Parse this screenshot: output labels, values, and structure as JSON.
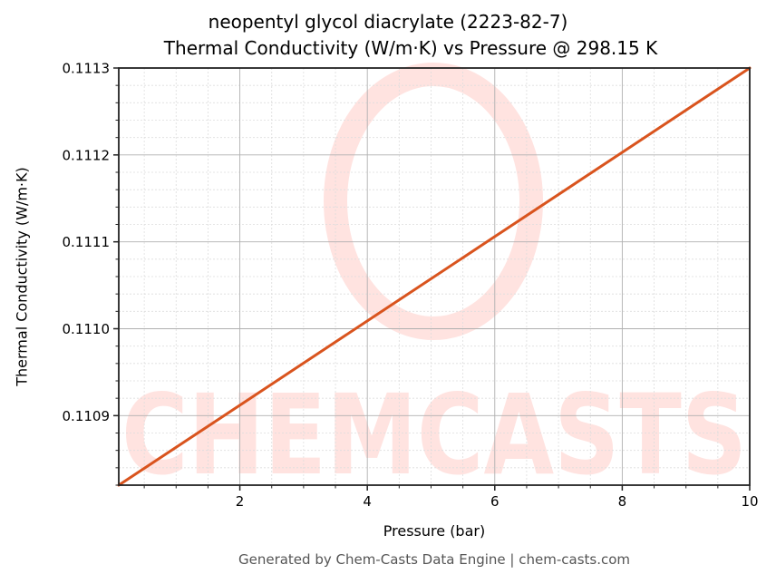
{
  "chart_data": {
    "type": "line",
    "title": "neopentyl glycol diacrylate (2223-82-7)",
    "subtitle": "Thermal Conductivity (W/m·K) vs Pressure @ 298.15 K",
    "xlabel": "Pressure (bar)",
    "ylabel": "Thermal Conductivity (W/m·K)",
    "xlim": [
      0.1,
      10
    ],
    "ylim": [
      0.11082,
      0.1113
    ],
    "x_ticks": [
      2,
      4,
      6,
      8,
      10
    ],
    "x_tick_labels": [
      "2",
      "4",
      "6",
      "8",
      "10"
    ],
    "y_ticks": [
      0.1109,
      0.111,
      0.1111,
      0.1112,
      0.1113
    ],
    "y_tick_labels": [
      "0.1109",
      "0.1110",
      "0.1111",
      "0.1112",
      "0.1113"
    ],
    "grid": true,
    "minor_grid": true,
    "legend": null,
    "series": [
      {
        "name": "Thermal Conductivity",
        "color": "#d9541e",
        "x": [
          0.1,
          2,
          4,
          6,
          8,
          10
        ],
        "y": [
          0.11082,
          0.110912,
          0.111009,
          0.111106,
          0.111203,
          0.1113
        ]
      }
    ],
    "watermark": "CHEMCASTS"
  },
  "footer": "Generated by Chem-Casts Data Engine | chem-casts.com",
  "colors": {
    "line": "#d9541e",
    "watermark": "#ffe3e0",
    "major_grid": "#b0b0b0",
    "minor_grid": "#dddddd",
    "footer_text": "#555555"
  }
}
